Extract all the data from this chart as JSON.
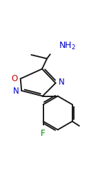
{
  "bg_color": "#ffffff",
  "line_color": "#1a1a1a",
  "atom_colors": {
    "N": "#0000cc",
    "O": "#cc0000",
    "F": "#008800",
    "C": "#1a1a1a"
  },
  "font_size_label": 8.5,
  "line_width": 1.4,
  "dbo": 0.013
}
